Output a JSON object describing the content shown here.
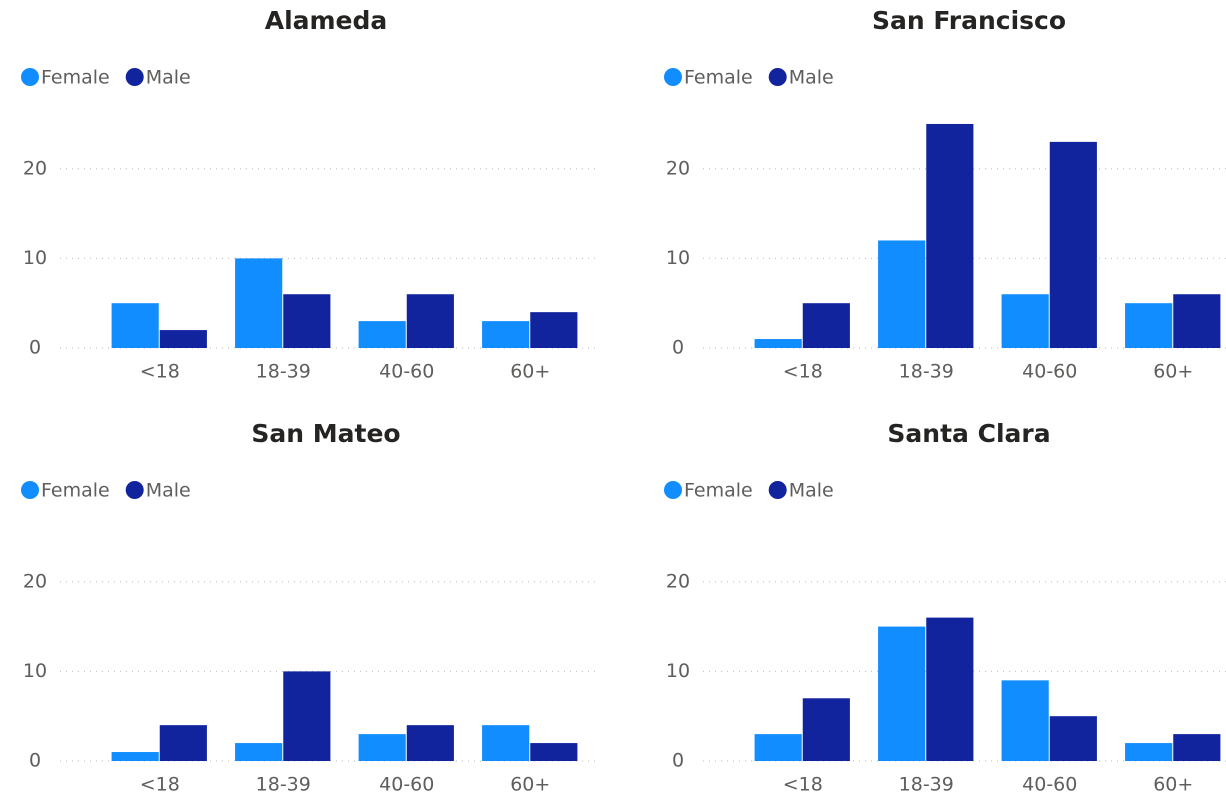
{
  "chart_data": [
    {
      "type": "bar",
      "title": "Alameda",
      "categories": [
        "<18",
        "18-39",
        "40-60",
        "60+"
      ],
      "series": [
        {
          "name": "Female",
          "color": "#118DFF",
          "values": [
            5,
            10,
            3,
            3
          ]
        },
        {
          "name": "Male",
          "color": "#12239E",
          "values": [
            2,
            6,
            6,
            4
          ]
        }
      ],
      "ylim": [
        0,
        26
      ],
      "yticks": [
        0,
        10,
        20
      ],
      "grid": true,
      "legend": "top-left"
    },
    {
      "type": "bar",
      "title": "San Francisco",
      "categories": [
        "<18",
        "18-39",
        "40-60",
        "60+"
      ],
      "series": [
        {
          "name": "Female",
          "color": "#118DFF",
          "values": [
            1,
            12,
            6,
            5
          ]
        },
        {
          "name": "Male",
          "color": "#12239E",
          "values": [
            5,
            25,
            23,
            6
          ]
        }
      ],
      "ylim": [
        0,
        26
      ],
      "yticks": [
        0,
        10,
        20
      ],
      "grid": true,
      "legend": "top-left"
    },
    {
      "type": "bar",
      "title": "San Mateo",
      "categories": [
        "<18",
        "18-39",
        "40-60",
        "60+"
      ],
      "series": [
        {
          "name": "Female",
          "color": "#118DFF",
          "values": [
            1,
            2,
            3,
            4
          ]
        },
        {
          "name": "Male",
          "color": "#12239E",
          "values": [
            4,
            10,
            4,
            2
          ]
        }
      ],
      "ylim": [
        0,
        26
      ],
      "yticks": [
        0,
        10,
        20
      ],
      "grid": true,
      "legend": "top-left"
    },
    {
      "type": "bar",
      "title": "Santa Clara",
      "categories": [
        "<18",
        "18-39",
        "40-60",
        "60+"
      ],
      "series": [
        {
          "name": "Female",
          "color": "#118DFF",
          "values": [
            3,
            15,
            9,
            2
          ]
        },
        {
          "name": "Male",
          "color": "#12239E",
          "values": [
            7,
            16,
            5,
            3
          ]
        }
      ],
      "ylim": [
        0,
        26
      ],
      "yticks": [
        0,
        10,
        20
      ],
      "grid": true,
      "legend": "top-left"
    }
  ]
}
